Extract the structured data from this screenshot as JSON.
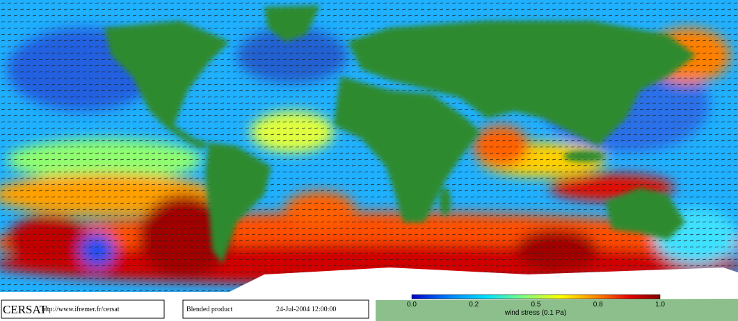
{
  "footer": {
    "logo": "CERSAT",
    "url": "http://www.ifremer.fr/cersat",
    "product": "Blended product",
    "date": "24-Jul-2004 12:00:00"
  },
  "colorbar": {
    "ticks": [
      "0.0",
      "0.2",
      "0.5",
      "0.8",
      "1.0"
    ],
    "label": "wind stress (0.1 Pa)"
  }
}
